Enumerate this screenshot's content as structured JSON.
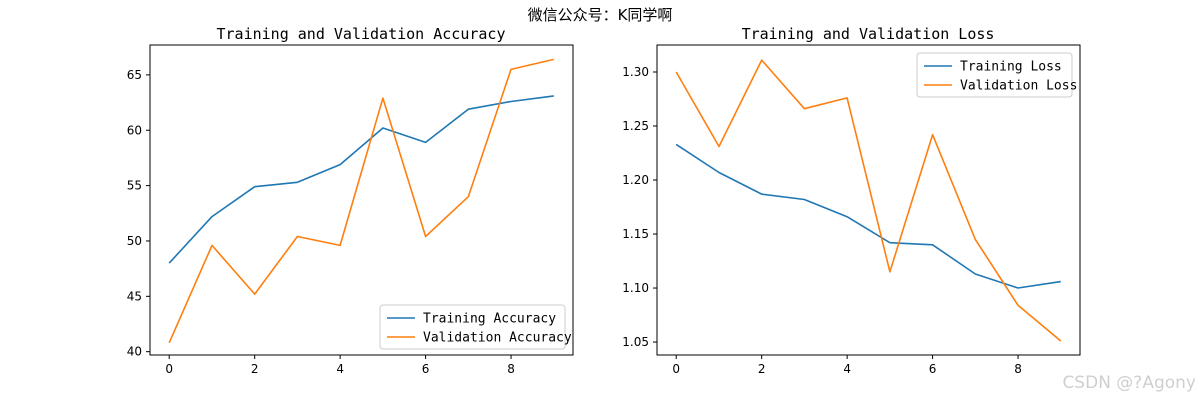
{
  "figure": {
    "suptitle": "微信公众号：K同学啊",
    "watermark": "CSDN @?Agony"
  },
  "colors": {
    "training": "#1f77b4",
    "validation": "#ff7f0e"
  },
  "chart_data": [
    {
      "type": "line",
      "title": "Training and Validation Accuracy",
      "xlabel": "",
      "ylabel": "",
      "x": [
        0,
        1,
        2,
        3,
        4,
        5,
        6,
        7,
        8,
        9
      ],
      "xlim": [
        -0.45,
        9.45
      ],
      "ylim": [
        39.7,
        67.7
      ],
      "xticks": [
        0,
        2,
        4,
        6,
        8
      ],
      "yticks": [
        40,
        45,
        50,
        55,
        60,
        65
      ],
      "legend_location": "lower right",
      "grid": false,
      "series": [
        {
          "name": "Training Accuracy",
          "values": [
            48.0,
            52.2,
            54.9,
            55.3,
            56.9,
            60.2,
            58.9,
            61.9,
            62.6,
            63.1
          ]
        },
        {
          "name": "Validation Accuracy",
          "values": [
            40.8,
            49.6,
            45.2,
            50.4,
            49.6,
            62.9,
            50.4,
            54.0,
            65.5,
            66.4
          ]
        }
      ]
    },
    {
      "type": "line",
      "title": "Training and Validation Loss",
      "xlabel": "",
      "ylabel": "",
      "x": [
        0,
        1,
        2,
        3,
        4,
        5,
        6,
        7,
        8,
        9
      ],
      "xlim": [
        -0.45,
        9.45
      ],
      "ylim": [
        1.038,
        1.325
      ],
      "xticks": [
        0,
        2,
        4,
        6,
        8
      ],
      "yticks": [
        1.05,
        1.1,
        1.15,
        1.2,
        1.25,
        1.3
      ],
      "legend_location": "upper right",
      "grid": false,
      "series": [
        {
          "name": "Training Loss",
          "values": [
            1.233,
            1.207,
            1.187,
            1.182,
            1.166,
            1.142,
            1.14,
            1.113,
            1.1,
            1.106
          ]
        },
        {
          "name": "Validation Loss",
          "values": [
            1.3,
            1.231,
            1.311,
            1.266,
            1.276,
            1.115,
            1.242,
            1.145,
            1.084,
            1.051
          ]
        }
      ]
    }
  ]
}
